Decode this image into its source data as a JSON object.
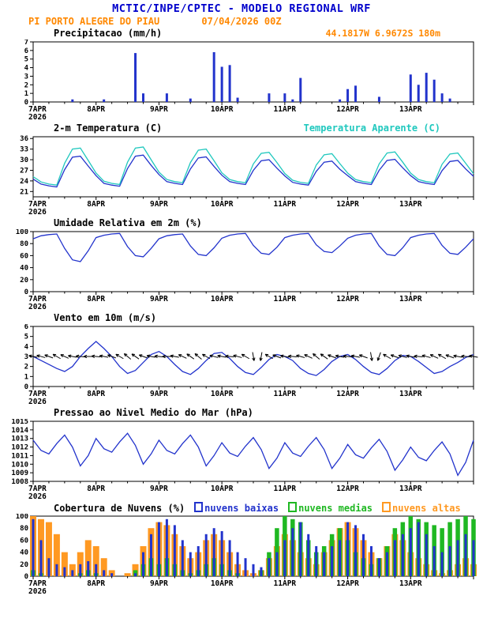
{
  "header": {
    "title": "MCTIC/INPE/CPTEC - MODELO REGIONAL WRF",
    "station_line": "PI PORTO ALEGRE DO PIAU",
    "run_datetime": "07/04/2026 00Z",
    "location": "44.1817W 6.9672S 180m"
  },
  "colors": {
    "title_blue": "#0000cc",
    "orange": "#ff8800",
    "line_blue": "#2233cc",
    "cyan": "#20c8be",
    "green": "#1fb822",
    "cloud_orange": "#ff9922",
    "axis_black": "#000000"
  },
  "x_axis": {
    "tick_labels": [
      "7APR",
      "8APR",
      "9APR",
      "10APR",
      "11APR",
      "12APR",
      "13APR"
    ],
    "year_label": "2026",
    "hours_range": [
      0,
      168
    ],
    "step_hours": 3
  },
  "chart_data": [
    {
      "id": "precipitation",
      "type": "bar",
      "title": "Precipitacao (mm/h)",
      "ylim": [
        0,
        7
      ],
      "yticks": [
        0,
        1,
        2,
        3,
        4,
        5,
        6,
        7
      ],
      "series": [
        {
          "name": "precipitacao",
          "color": "#2233cc",
          "values": [
            0,
            0,
            0,
            0,
            0,
            0.3,
            0,
            0,
            0,
            0.3,
            0,
            0,
            0,
            5.7,
            1.0,
            0,
            0,
            1.0,
            0,
            0,
            0.4,
            0,
            0,
            5.8,
            4.1,
            4.3,
            0.5,
            0,
            0,
            0,
            1.0,
            0,
            1.0,
            0.3,
            2.8,
            0,
            0,
            0,
            0,
            0.3,
            1.5,
            1.9,
            0,
            0,
            0.6,
            0,
            0,
            0,
            3.2,
            2.0,
            3.4,
            2.6,
            1.0,
            0.4,
            0,
            0,
            0
          ]
        }
      ]
    },
    {
      "id": "temperature",
      "type": "line",
      "title": "2-m Temperatura (C)",
      "title2": "Temperatura Aparente (C)",
      "ylim": [
        19.5,
        36.5
      ],
      "yticks": [
        21,
        24,
        27,
        30,
        33,
        36
      ],
      "series": [
        {
          "name": "2-m Temperatura",
          "color": "#2233cc",
          "values": [
            24.5,
            23.1,
            22.6,
            22.3,
            27.2,
            30.7,
            31.0,
            28.2,
            25.5,
            23.3,
            22.8,
            22.5,
            27.5,
            31.0,
            31.3,
            28.4,
            25.8,
            23.8,
            23.3,
            23.0,
            27.4,
            30.5,
            30.8,
            28.1,
            25.6,
            23.8,
            23.3,
            23.0,
            27.0,
            29.7,
            30.0,
            27.6,
            25.4,
            23.6,
            23.1,
            22.8,
            26.7,
            29.3,
            29.6,
            27.3,
            25.5,
            23.8,
            23.3,
            23.0,
            27.0,
            29.8,
            30.1,
            27.7,
            25.5,
            23.8,
            23.3,
            23.0,
            26.9,
            29.5,
            29.8,
            27.4,
            25.3
          ]
        },
        {
          "name": "Temperatura Aparente",
          "color": "#20c8be",
          "values": [
            25.2,
            23.7,
            23.1,
            22.8,
            29.0,
            33.0,
            33.3,
            29.8,
            26.2,
            23.9,
            23.3,
            23.0,
            29.3,
            33.3,
            33.6,
            30.0,
            26.5,
            24.4,
            23.8,
            23.5,
            29.2,
            32.7,
            33.0,
            29.7,
            26.3,
            24.4,
            23.8,
            23.5,
            28.8,
            31.8,
            32.1,
            29.2,
            26.1,
            24.2,
            23.6,
            23.3,
            28.5,
            31.4,
            31.7,
            28.9,
            26.2,
            24.4,
            23.8,
            23.5,
            28.8,
            31.9,
            32.2,
            29.3,
            26.2,
            24.4,
            23.8,
            23.5,
            28.7,
            31.6,
            31.9,
            29.0,
            26.0
          ]
        }
      ]
    },
    {
      "id": "humidity",
      "type": "line",
      "title": "Umidade Relativa em 2m (%)",
      "ylim": [
        0,
        100
      ],
      "yticks": [
        0,
        20,
        40,
        60,
        80,
        100
      ],
      "series": [
        {
          "name": "umidade relativa",
          "color": "#2233cc",
          "values": [
            88,
            93,
            95,
            96,
            72,
            53,
            50,
            68,
            90,
            94,
            96,
            97,
            75,
            60,
            58,
            72,
            88,
            93,
            95,
            96,
            76,
            62,
            60,
            73,
            89,
            94,
            96,
            97,
            77,
            64,
            62,
            74,
            90,
            94,
            96,
            97,
            78,
            67,
            65,
            76,
            89,
            94,
            96,
            97,
            76,
            62,
            60,
            73,
            90,
            94,
            96,
            97,
            77,
            64,
            62,
            74,
            88
          ]
        }
      ]
    },
    {
      "id": "wind",
      "type": "line",
      "title": "Vento em 10m (m/s)",
      "ylim": [
        0,
        6
      ],
      "yticks": [
        0,
        1,
        2,
        3,
        4,
        5,
        6
      ],
      "arrow_y": 3.0,
      "arrow_dirs": [
        100,
        105,
        110,
        120,
        115,
        100,
        95,
        90,
        95,
        100,
        110,
        120,
        130,
        125,
        110,
        100,
        95,
        90,
        100,
        115,
        125,
        130,
        120,
        105,
        100,
        95,
        105,
        120,
        350,
        10,
        120,
        110,
        100,
        95,
        105,
        115,
        130,
        125,
        110,
        100,
        95,
        100,
        110,
        350,
        20,
        120,
        110,
        105,
        100,
        95,
        105,
        115,
        120,
        110,
        100,
        95,
        100
      ],
      "series": [
        {
          "name": "velocidade do vento",
          "color": "#2233cc",
          "values": [
            3.0,
            2.6,
            2.2,
            1.8,
            1.5,
            2.0,
            3.0,
            3.8,
            4.5,
            3.8,
            3.0,
            2.0,
            1.3,
            1.6,
            2.4,
            3.2,
            3.5,
            3.0,
            2.2,
            1.5,
            1.2,
            1.8,
            2.6,
            3.3,
            3.4,
            2.8,
            2.0,
            1.4,
            1.2,
            1.9,
            2.7,
            3.2,
            3.0,
            2.6,
            1.8,
            1.3,
            1.1,
            1.7,
            2.5,
            3.0,
            3.2,
            2.7,
            2.0,
            1.4,
            1.2,
            1.8,
            2.6,
            3.1,
            3.0,
            2.5,
            1.9,
            1.3,
            1.5,
            2.0,
            2.4,
            2.9,
            3.2
          ]
        }
      ]
    },
    {
      "id": "pressure",
      "type": "line",
      "title": "Pressao ao Nivel Medio do Mar (hPa)",
      "ylim": [
        1008,
        1015
      ],
      "yticks": [
        1008,
        1009,
        1010,
        1011,
        1012,
        1013,
        1014,
        1015
      ],
      "series": [
        {
          "name": "pressao",
          "color": "#2233cc",
          "values": [
            1012.8,
            1011.6,
            1011.2,
            1012.4,
            1013.4,
            1012.0,
            1009.8,
            1011.0,
            1013.0,
            1011.8,
            1011.4,
            1012.6,
            1013.6,
            1012.2,
            1010.0,
            1011.2,
            1012.8,
            1011.6,
            1011.2,
            1012.4,
            1013.4,
            1012.0,
            1009.8,
            1011.0,
            1012.5,
            1011.3,
            1010.9,
            1012.1,
            1013.1,
            1011.7,
            1009.5,
            1010.7,
            1012.5,
            1011.3,
            1010.9,
            1012.1,
            1013.1,
            1011.7,
            1009.5,
            1010.7,
            1012.3,
            1011.1,
            1010.7,
            1011.9,
            1012.9,
            1011.5,
            1009.3,
            1010.5,
            1012.0,
            1010.8,
            1010.4,
            1011.6,
            1012.6,
            1011.2,
            1008.7,
            1010.2,
            1012.8
          ]
        }
      ]
    },
    {
      "id": "clouds",
      "type": "cloudbar",
      "title": "Cobertura de Nuvens (%)",
      "ylim": [
        0,
        100
      ],
      "yticks": [
        0,
        20,
        40,
        60,
        80,
        100
      ],
      "legend": [
        {
          "label": "nuvens baixas",
          "color": "#2233cc"
        },
        {
          "label": "nuvens medias",
          "color": "#1fb822"
        },
        {
          "label": "nuvens altas",
          "color": "#ff9922"
        }
      ],
      "series": [
        {
          "name": "nuvens baixas",
          "color": "#2233cc",
          "values": [
            95,
            60,
            30,
            20,
            15,
            10,
            20,
            25,
            20,
            10,
            5,
            0,
            0,
            5,
            40,
            70,
            90,
            95,
            85,
            60,
            40,
            50,
            70,
            80,
            75,
            60,
            40,
            30,
            20,
            15,
            30,
            40,
            60,
            80,
            90,
            70,
            50,
            40,
            50,
            60,
            90,
            85,
            70,
            50,
            30,
            40,
            60,
            70,
            80,
            90,
            70,
            50,
            40,
            50,
            60,
            70,
            60
          ]
        },
        {
          "name": "nuvens medias",
          "color": "#1fb822",
          "values": [
            10,
            5,
            0,
            0,
            0,
            0,
            5,
            10,
            5,
            0,
            0,
            0,
            0,
            10,
            20,
            30,
            20,
            30,
            20,
            10,
            5,
            10,
            20,
            30,
            20,
            10,
            5,
            0,
            0,
            10,
            40,
            80,
            100,
            95,
            90,
            60,
            40,
            50,
            70,
            80,
            60,
            40,
            30,
            20,
            30,
            50,
            80,
            90,
            100,
            95,
            90,
            85,
            80,
            90,
            95,
            100,
            95
          ]
        },
        {
          "name": "nuvens altas",
          "color": "#ff9922",
          "values": [
            100,
            95,
            90,
            70,
            40,
            20,
            40,
            60,
            50,
            30,
            10,
            0,
            5,
            20,
            50,
            80,
            90,
            85,
            70,
            50,
            30,
            40,
            60,
            70,
            60,
            40,
            20,
            10,
            5,
            10,
            30,
            50,
            70,
            60,
            40,
            30,
            20,
            40,
            60,
            80,
            90,
            80,
            60,
            40,
            30,
            50,
            70,
            60,
            40,
            30,
            20,
            10,
            5,
            10,
            20,
            30,
            20
          ]
        }
      ]
    }
  ]
}
